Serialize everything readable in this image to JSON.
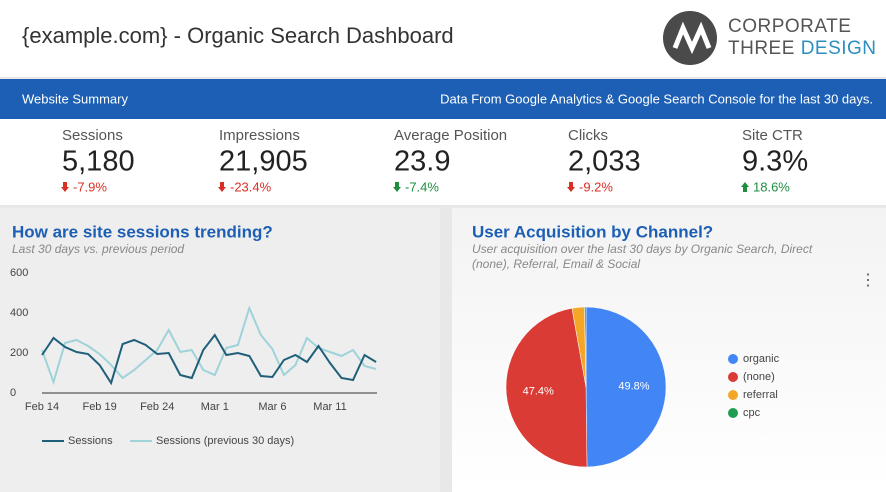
{
  "header": {
    "title": "{example.com} - Organic Search Dashboard",
    "logo_top": "CORPORATE",
    "logo_bottom": [
      "THREE",
      "DESIGN"
    ]
  },
  "banner": {
    "left": "Website Summary",
    "right": "Data From Google Analytics & Google Search Console for the last 30 days."
  },
  "kpis": [
    {
      "label": "Sessions",
      "value": "5,180",
      "change": "-7.9%",
      "color": "#d93025"
    },
    {
      "label": "Impressions",
      "value": "21,905",
      "change": "-23.4%",
      "color": "#d93025"
    },
    {
      "label": "Average Position",
      "value": "23.9",
      "change": "-7.4%",
      "color": "#1e8e3e"
    },
    {
      "label": "Clicks",
      "value": "2,033",
      "change": "-9.2%",
      "color": "#d93025"
    },
    {
      "label": "Site CTR",
      "value": "9.3%",
      "change": "18.6%",
      "color": "#1e8e3e"
    }
  ],
  "chart_data": [
    {
      "type": "line",
      "title": "How are site sessions trending?",
      "subtitle": "Last 30 days vs. previous period",
      "categories": [
        "Feb 14",
        null,
        null,
        null,
        null,
        "Feb 19",
        null,
        null,
        null,
        null,
        "Feb 24",
        null,
        null,
        null,
        null,
        "Mar 1",
        null,
        null,
        null,
        null,
        "Mar 6",
        null,
        null,
        null,
        null,
        "Mar 11",
        null,
        null,
        null,
        null
      ],
      "series": [
        {
          "name": "Sessions",
          "color": "#1f5f7a",
          "values": [
            190,
            275,
            230,
            205,
            195,
            140,
            50,
            245,
            265,
            240,
            195,
            200,
            90,
            75,
            215,
            290,
            190,
            200,
            185,
            85,
            80,
            165,
            190,
            155,
            235,
            150,
            75,
            65,
            190,
            155
          ]
        },
        {
          "name": "Sessions (previous 30 days)",
          "color": "#9fd3d9",
          "values": [
            215,
            55,
            250,
            265,
            235,
            195,
            140,
            75,
            115,
            165,
            215,
            315,
            205,
            215,
            115,
            90,
            225,
            240,
            425,
            290,
            220,
            90,
            140,
            275,
            225,
            205,
            185,
            215,
            135,
            120
          ]
        }
      ],
      "ylim": [
        0,
        600
      ],
      "yticks": [
        0,
        200,
        400,
        600
      ],
      "grid": false
    },
    {
      "type": "pie",
      "title": "User Acquisition by Channel?",
      "subtitle": [
        "User acquisition over the last 30 days by Organic Search, Direct",
        "(none), Referral, Email & Social"
      ],
      "categories": [
        "organic",
        "(none)",
        "referral",
        "cpc"
      ],
      "values": [
        49.8,
        47.4,
        2.5,
        0.3
      ],
      "value_labels": [
        "49.8%",
        "47.4%",
        null,
        null
      ],
      "colors": [
        "#4285f4",
        "#db3b35",
        "#f4a727",
        "#1e9e50"
      ]
    }
  ]
}
